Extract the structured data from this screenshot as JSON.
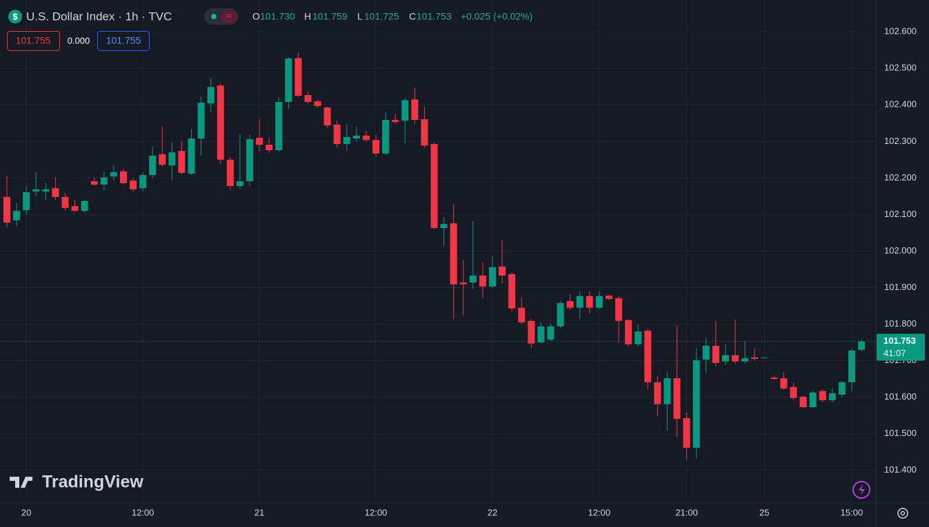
{
  "header": {
    "title": "U.S. Dollar Index · 1h · TVC",
    "ohlc": [
      {
        "label": "O",
        "value": "101.730"
      },
      {
        "label": "H",
        "value": "101.759"
      },
      {
        "label": "L",
        "value": "101.725"
      },
      {
        "label": "C",
        "value": "101.753"
      }
    ],
    "change": "+0.025 (+0.02%)"
  },
  "trade": {
    "sell": "101.755",
    "spread": "0.000",
    "buy": "101.755"
  },
  "watermark": "TradingView",
  "chart_data": {
    "type": "candlestick",
    "up_color": "#089981",
    "down_color": "#f23645",
    "grid": true,
    "categories": [
      null,
      null,
      "20",
      null,
      null,
      null,
      null,
      null,
      null,
      null,
      null,
      null,
      null,
      null,
      "12:00",
      null,
      null,
      null,
      null,
      null,
      null,
      null,
      null,
      null,
      null,
      null,
      "21",
      null,
      null,
      null,
      null,
      null,
      null,
      null,
      null,
      null,
      null,
      null,
      "12:00",
      null,
      null,
      null,
      null,
      null,
      null,
      null,
      null,
      null,
      null,
      null,
      "22",
      null,
      null,
      null,
      null,
      null,
      null,
      null,
      null,
      null,
      null,
      "12:00",
      null,
      null,
      null,
      null,
      null,
      null,
      null,
      null,
      "21:00",
      null,
      null,
      null,
      null,
      null,
      null,
      null,
      "25",
      null,
      null,
      null,
      null,
      null,
      null,
      null,
      null,
      "15:00",
      null
    ],
    "open": [
      102.148,
      102.084,
      102.112,
      102.163,
      102.163,
      102.172,
      102.148,
      102.123,
      102.11,
      102.191,
      102.182,
      102.204,
      102.218,
      102.193,
      102.172,
      102.208,
      102.265,
      102.234,
      102.274,
      102.212,
      102.308,
      102.404,
      102.453,
      102.25,
      102.178,
      102.191,
      102.31,
      102.291,
      102.276,
      102.408,
      102.528,
      102.427,
      102.41,
      102.393,
      102.346,
      102.293,
      102.308,
      102.316,
      102.304,
      102.267,
      102.359,
      102.357,
      102.415,
      102.361,
      102.293,
      102.063,
      102.076,
      101.914,
      101.914,
      101.933,
      101.903,
      101.958,
      101.937,
      101.845,
      101.809,
      101.75,
      101.758,
      101.794,
      101.863,
      101.845,
      101.877,
      101.845,
      101.878,
      101.871,
      101.811,
      101.745,
      101.782,
      101.641,
      101.581,
      101.652,
      101.543,
      101.462,
      101.703,
      101.741,
      101.698,
      101.715,
      101.698,
      101.709,
      101.707,
      101.654,
      101.652,
      101.628,
      101.601,
      101.573,
      101.617,
      101.592,
      101.607,
      101.641,
      101.73
    ],
    "high": [
      102.206,
      102.131,
      102.178,
      102.216,
      102.187,
      102.202,
      102.159,
      102.14,
      102.142,
      102.201,
      102.216,
      102.235,
      102.225,
      102.201,
      102.216,
      102.287,
      102.342,
      102.297,
      102.3,
      102.334,
      102.423,
      102.474,
      102.459,
      102.257,
      102.321,
      102.319,
      102.361,
      102.31,
      102.421,
      102.53,
      102.543,
      102.438,
      102.415,
      102.395,
      102.357,
      102.346,
      102.342,
      102.329,
      102.319,
      102.381,
      102.376,
      102.419,
      102.447,
      102.395,
      102.297,
      102.093,
      102.129,
      101.976,
      102.082,
      101.969,
      101.987,
      102.031,
      101.941,
      101.873,
      101.814,
      101.805,
      101.801,
      101.865,
      101.882,
      101.89,
      101.89,
      101.89,
      101.88,
      101.877,
      101.814,
      101.799,
      101.788,
      101.658,
      101.669,
      101.796,
      101.558,
      101.733,
      101.762,
      101.809,
      101.745,
      101.813,
      101.754,
      101.735,
      101.709,
      101.66,
      101.669,
      101.641,
      101.605,
      101.617,
      101.622,
      101.624,
      101.645,
      101.732,
      101.759
    ],
    "low": [
      102.065,
      102.069,
      102.099,
      102.15,
      102.14,
      102.14,
      102.112,
      102.106,
      102.106,
      102.178,
      102.165,
      102.193,
      102.182,
      102.163,
      102.163,
      102.201,
      102.231,
      102.193,
      102.21,
      102.208,
      102.261,
      102.38,
      102.238,
      102.167,
      102.169,
      102.178,
      102.272,
      102.268,
      102.272,
      102.389,
      102.421,
      102.404,
      102.391,
      102.338,
      102.283,
      102.274,
      102.299,
      102.299,
      102.259,
      102.263,
      102.348,
      102.295,
      102.348,
      102.283,
      102.059,
      102.014,
      101.813,
      101.824,
      101.895,
      101.871,
      101.899,
      101.912,
      101.835,
      101.801,
      101.735,
      101.748,
      101.754,
      101.788,
      101.839,
      101.814,
      101.829,
      101.841,
      101.865,
      101.75,
      101.739,
      101.739,
      101.622,
      101.547,
      101.509,
      101.492,
      101.43,
      101.434,
      101.667,
      101.684,
      101.688,
      101.692,
      101.692,
      101.7,
      101.707,
      101.647,
      101.62,
      101.594,
      101.57,
      101.571,
      101.586,
      101.586,
      101.6,
      101.617,
      101.725
    ],
    "close": [
      102.078,
      102.11,
      102.161,
      102.169,
      102.169,
      102.148,
      102.118,
      102.11,
      102.137,
      102.182,
      102.202,
      102.216,
      102.186,
      102.169,
      102.208,
      102.261,
      102.236,
      102.27,
      102.214,
      102.308,
      102.406,
      102.449,
      102.25,
      102.178,
      102.191,
      102.306,
      102.291,
      102.276,
      102.408,
      102.527,
      102.425,
      102.408,
      102.397,
      102.344,
      102.293,
      102.312,
      102.316,
      102.304,
      102.267,
      102.359,
      102.353,
      102.413,
      102.359,
      102.289,
      102.063,
      102.074,
      101.909,
      101.909,
      101.933,
      101.903,
      101.956,
      101.933,
      101.843,
      101.805,
      101.747,
      101.794,
      101.794,
      101.858,
      101.845,
      101.877,
      101.845,
      101.877,
      101.869,
      101.809,
      101.745,
      101.78,
      101.641,
      101.581,
      101.652,
      101.541,
      101.462,
      101.701,
      101.741,
      101.694,
      101.715,
      101.698,
      101.707,
      101.705,
      101.709,
      101.65,
      101.624,
      101.598,
      101.573,
      101.613,
      101.592,
      101.611,
      101.641,
      101.728,
      101.753
    ],
    "ylim": [
      101.311,
      102.687
    ],
    "yticks": [
      {
        "value": 101.4,
        "label": "101.400"
      },
      {
        "value": 101.5,
        "label": "101.500"
      },
      {
        "value": 101.6,
        "label": "101.600"
      },
      {
        "value": 101.7,
        "label": "101.700"
      },
      {
        "value": 101.8,
        "label": "101.800"
      },
      {
        "value": 101.9,
        "label": "101.900"
      },
      {
        "value": 102.0,
        "label": "102.000"
      },
      {
        "value": 102.1,
        "label": "102.100"
      },
      {
        "value": 102.2,
        "label": "102.200"
      },
      {
        "value": 102.3,
        "label": "102.300"
      },
      {
        "value": 102.4,
        "label": "102.400"
      },
      {
        "value": 102.5,
        "label": "102.500"
      },
      {
        "value": 102.6,
        "label": "102.600"
      }
    ],
    "last_price": {
      "value": 101.753,
      "label": "101.753"
    },
    "countdown": "41:07"
  }
}
